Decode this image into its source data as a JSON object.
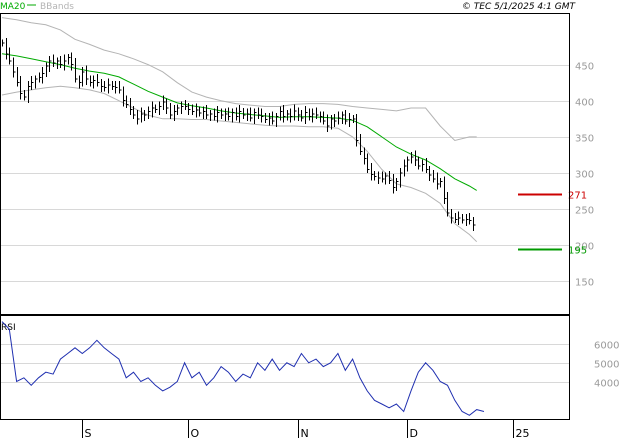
{
  "header": {
    "source": "© TEC 5/1/2025 4:1 GMT"
  },
  "colors": {
    "price": "#000000",
    "ma20": "#00aa00",
    "bbands": "#b4b4b4",
    "rsi": "#1f2fb0",
    "resistance": "#cc0000",
    "support": "#009900",
    "axis_text": "#9a9a9a"
  },
  "chart_data": [
    {
      "type": "line",
      "panel": "price",
      "legend": [
        "MA20",
        "BBands"
      ],
      "ylim": [
        105,
        520
      ],
      "yticks": [
        150,
        200,
        250,
        300,
        350,
        400,
        450
      ],
      "xticks": [
        {
          "label": "S",
          "x": 22
        },
        {
          "label": "O",
          "x": 51
        },
        {
          "label": "N",
          "x": 81
        },
        {
          "label": "D",
          "x": 111
        },
        {
          "label": "25",
          "x": 140
        }
      ],
      "x_range": [
        0,
        155
      ],
      "levels": [
        {
          "name": "resistance",
          "value": 271,
          "label": "271"
        },
        {
          "name": "support",
          "value": 195,
          "label": "195"
        }
      ],
      "close": [
        [
          0,
          480
        ],
        [
          1,
          465
        ],
        [
          2,
          455
        ],
        [
          3,
          440
        ],
        [
          4,
          425
        ],
        [
          5,
          410
        ],
        [
          6,
          405
        ],
        [
          7,
          420
        ],
        [
          8,
          425
        ],
        [
          9,
          430
        ],
        [
          10,
          432
        ],
        [
          11,
          438
        ],
        [
          12,
          448
        ],
        [
          13,
          455
        ],
        [
          14,
          452
        ],
        [
          15,
          455
        ],
        [
          16,
          450
        ],
        [
          17,
          455
        ],
        [
          18,
          460
        ],
        [
          19,
          450
        ],
        [
          20,
          430
        ],
        [
          21,
          425
        ],
        [
          22,
          440
        ],
        [
          23,
          430
        ],
        [
          24,
          425
        ],
        [
          25,
          428
        ],
        [
          26,
          425
        ],
        [
          27,
          420
        ],
        [
          28,
          418
        ],
        [
          29,
          422
        ],
        [
          30,
          420
        ],
        [
          31,
          418
        ],
        [
          32,
          415
        ],
        [
          33,
          400
        ],
        [
          34,
          395
        ],
        [
          35,
          388
        ],
        [
          36,
          380
        ],
        [
          37,
          375
        ],
        [
          38,
          382
        ],
        [
          39,
          380
        ],
        [
          40,
          385
        ],
        [
          41,
          390
        ],
        [
          42,
          388
        ],
        [
          43,
          392
        ],
        [
          44,
          398
        ],
        [
          45,
          390
        ],
        [
          46,
          380
        ],
        [
          47,
          385
        ],
        [
          48,
          390
        ],
        [
          49,
          392
        ],
        [
          50,
          392
        ],
        [
          51,
          388
        ],
        [
          52,
          385
        ],
        [
          53,
          387
        ],
        [
          54,
          383
        ],
        [
          55,
          385
        ],
        [
          56,
          380
        ],
        [
          57,
          382
        ],
        [
          58,
          378
        ],
        [
          59,
          384
        ],
        [
          60,
          380
        ],
        [
          61,
          382
        ],
        [
          62,
          378
        ],
        [
          63,
          384
        ],
        [
          64,
          378
        ],
        [
          65,
          385
        ],
        [
          66,
          380
        ],
        [
          67,
          382
        ],
        [
          68,
          376
        ],
        [
          69,
          384
        ],
        [
          70,
          380
        ],
        [
          71,
          378
        ],
        [
          72,
          374
        ],
        [
          73,
          376
        ],
        [
          74,
          372
        ],
        [
          75,
          378
        ],
        [
          76,
          385
        ],
        [
          77,
          378
        ],
        [
          78,
          382
        ],
        [
          79,
          378
        ],
        [
          80,
          386
        ],
        [
          81,
          380
        ],
        [
          82,
          376
        ],
        [
          83,
          384
        ],
        [
          84,
          378
        ],
        [
          85,
          382
        ],
        [
          86,
          380
        ],
        [
          87,
          378
        ],
        [
          88,
          372
        ],
        [
          89,
          365
        ],
        [
          90,
          375
        ],
        [
          91,
          372
        ],
        [
          92,
          376
        ],
        [
          93,
          380
        ],
        [
          94,
          372
        ],
        [
          95,
          374
        ],
        [
          96,
          375
        ],
        [
          97,
          345
        ],
        [
          98,
          330
        ],
        [
          99,
          320
        ],
        [
          100,
          305
        ],
        [
          101,
          298
        ],
        [
          102,
          295
        ],
        [
          103,
          293
        ],
        [
          104,
          292
        ],
        [
          105,
          296
        ],
        [
          106,
          290
        ],
        [
          107,
          280
        ],
        [
          108,
          288
        ],
        [
          109,
          300
        ],
        [
          110,
          310
        ],
        [
          111,
          318
        ],
        [
          112,
          322
        ],
        [
          113,
          318
        ],
        [
          114,
          310
        ],
        [
          115,
          312
        ],
        [
          116,
          305
        ],
        [
          117,
          297
        ],
        [
          118,
          292
        ],
        [
          119,
          285
        ],
        [
          120,
          288
        ],
        [
          121,
          265
        ],
        [
          122,
          245
        ],
        [
          123,
          238
        ],
        [
          124,
          236
        ],
        [
          125,
          238
        ],
        [
          126,
          235
        ],
        [
          127,
          236
        ],
        [
          128,
          234
        ],
        [
          129,
          228
        ]
      ],
      "ma20": [
        [
          0,
          465
        ],
        [
          4,
          462
        ],
        [
          8,
          458
        ],
        [
          12,
          454
        ],
        [
          16,
          450
        ],
        [
          20,
          445
        ],
        [
          24,
          441
        ],
        [
          28,
          438
        ],
        [
          32,
          433
        ],
        [
          36,
          423
        ],
        [
          40,
          413
        ],
        [
          44,
          405
        ],
        [
          48,
          397
        ],
        [
          52,
          393
        ],
        [
          56,
          390
        ],
        [
          60,
          386
        ],
        [
          64,
          383
        ],
        [
          68,
          381
        ],
        [
          72,
          379
        ],
        [
          76,
          377
        ],
        [
          80,
          378
        ],
        [
          84,
          378
        ],
        [
          88,
          377
        ],
        [
          92,
          376
        ],
        [
          96,
          373
        ],
        [
          100,
          364
        ],
        [
          104,
          350
        ],
        [
          108,
          336
        ],
        [
          112,
          326
        ],
        [
          116,
          318
        ],
        [
          120,
          306
        ],
        [
          124,
          292
        ],
        [
          128,
          282
        ],
        [
          130,
          276
        ]
      ],
      "bb_upper": [
        [
          0,
          515
        ],
        [
          4,
          512
        ],
        [
          8,
          508
        ],
        [
          12,
          505
        ],
        [
          16,
          498
        ],
        [
          20,
          485
        ],
        [
          24,
          478
        ],
        [
          28,
          470
        ],
        [
          32,
          465
        ],
        [
          36,
          458
        ],
        [
          40,
          450
        ],
        [
          44,
          440
        ],
        [
          48,
          425
        ],
        [
          52,
          412
        ],
        [
          56,
          405
        ],
        [
          60,
          400
        ],
        [
          64,
          396
        ],
        [
          68,
          394
        ],
        [
          72,
          392
        ],
        [
          76,
          392
        ],
        [
          80,
          395
        ],
        [
          84,
          396
        ],
        [
          88,
          396
        ],
        [
          92,
          395
        ],
        [
          96,
          392
        ],
        [
          100,
          390
        ],
        [
          104,
          388
        ],
        [
          108,
          386
        ],
        [
          112,
          390
        ],
        [
          116,
          390
        ],
        [
          120,
          365
        ],
        [
          124,
          345
        ],
        [
          128,
          350
        ],
        [
          130,
          350
        ]
      ],
      "bb_lower": [
        [
          0,
          408
        ],
        [
          4,
          412
        ],
        [
          8,
          415
        ],
        [
          12,
          418
        ],
        [
          16,
          420
        ],
        [
          20,
          418
        ],
        [
          24,
          415
        ],
        [
          28,
          410
        ],
        [
          32,
          400
        ],
        [
          36,
          390
        ],
        [
          40,
          380
        ],
        [
          44,
          375
        ],
        [
          48,
          375
        ],
        [
          52,
          374
        ],
        [
          56,
          374
        ],
        [
          60,
          372
        ],
        [
          64,
          370
        ],
        [
          68,
          368
        ],
        [
          72,
          366
        ],
        [
          76,
          365
        ],
        [
          80,
          365
        ],
        [
          84,
          364
        ],
        [
          88,
          364
        ],
        [
          92,
          362
        ],
        [
          96,
          350
        ],
        [
          100,
          330
        ],
        [
          104,
          305
        ],
        [
          108,
          285
        ],
        [
          112,
          280
        ],
        [
          116,
          272
        ],
        [
          120,
          258
        ],
        [
          124,
          230
        ],
        [
          128,
          215
        ],
        [
          130,
          205
        ]
      ]
    },
    {
      "type": "line",
      "panel": "rsi",
      "legend": [
        "RSI"
      ],
      "ylim": [
        20,
        75
      ],
      "yticks": [
        {
          "value": 40,
          "label": "4000"
        },
        {
          "value": 50,
          "label": "5000"
        },
        {
          "value": 60,
          "label": "6000"
        }
      ],
      "rsi": [
        [
          0,
          72
        ],
        [
          2,
          68
        ],
        [
          4,
          40
        ],
        [
          6,
          42
        ],
        [
          8,
          38
        ],
        [
          10,
          42
        ],
        [
          12,
          45
        ],
        [
          14,
          44
        ],
        [
          16,
          52
        ],
        [
          18,
          55
        ],
        [
          20,
          58
        ],
        [
          22,
          55
        ],
        [
          24,
          58
        ],
        [
          26,
          62
        ],
        [
          28,
          58
        ],
        [
          30,
          55
        ],
        [
          32,
          52
        ],
        [
          34,
          42
        ],
        [
          36,
          45
        ],
        [
          38,
          40
        ],
        [
          40,
          42
        ],
        [
          42,
          38
        ],
        [
          44,
          35
        ],
        [
          46,
          37
        ],
        [
          48,
          40
        ],
        [
          50,
          50
        ],
        [
          52,
          42
        ],
        [
          54,
          45
        ],
        [
          56,
          38
        ],
        [
          58,
          42
        ],
        [
          60,
          48
        ],
        [
          62,
          45
        ],
        [
          64,
          40
        ],
        [
          66,
          44
        ],
        [
          68,
          42
        ],
        [
          70,
          50
        ],
        [
          72,
          46
        ],
        [
          74,
          52
        ],
        [
          76,
          46
        ],
        [
          78,
          50
        ],
        [
          80,
          48
        ],
        [
          82,
          55
        ],
        [
          84,
          50
        ],
        [
          86,
          52
        ],
        [
          88,
          48
        ],
        [
          90,
          50
        ],
        [
          92,
          55
        ],
        [
          94,
          46
        ],
        [
          96,
          52
        ],
        [
          98,
          42
        ],
        [
          100,
          35
        ],
        [
          102,
          30
        ],
        [
          104,
          28
        ],
        [
          106,
          26
        ],
        [
          108,
          28
        ],
        [
          110,
          24
        ],
        [
          112,
          35
        ],
        [
          114,
          45
        ],
        [
          116,
          50
        ],
        [
          118,
          46
        ],
        [
          120,
          40
        ],
        [
          122,
          38
        ],
        [
          124,
          30
        ],
        [
          126,
          24
        ],
        [
          128,
          22
        ],
        [
          130,
          25
        ],
        [
          132,
          24
        ]
      ]
    }
  ]
}
